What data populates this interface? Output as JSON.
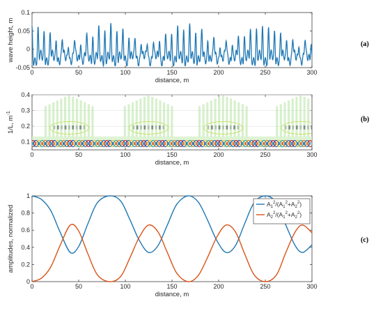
{
  "panels": {
    "a": {
      "label": "(a)"
    },
    "b": {
      "label": "(b)"
    },
    "c": {
      "label": "(c)"
    }
  },
  "colors": {
    "blue": "#1f77b4",
    "orange": "#d95319",
    "axis": "#262626",
    "grid": "#d9d9d9"
  },
  "chart_data": [
    {
      "type": "line",
      "title": "",
      "xlabel": "distance, m",
      "ylabel": "wave height, m",
      "xlim": [
        0,
        300
      ],
      "ylim": [
        -0.05,
        0.1
      ],
      "xticks": [
        "0",
        "50",
        "100",
        "150",
        "200",
        "250",
        "300"
      ],
      "yticks": [
        "-0.05",
        "0",
        "0.05",
        "0.1"
      ],
      "grid": false,
      "series": [
        {
          "color": "#1f77b4",
          "description_values": {
            "peak_spacing_m": 6.5,
            "max": 0.068,
            "min": -0.04
          }
        }
      ]
    },
    {
      "type": "heatmap",
      "title": "",
      "xlabel": "distance, m",
      "ylabel": "1/L, m",
      "ylabel_exponent": "-1",
      "xlim": [
        0,
        300
      ],
      "ylim": [
        0.05,
        0.4
      ],
      "xticks": [
        "0",
        "50",
        "100",
        "150",
        "200",
        "250",
        "300"
      ],
      "yticks": [
        "0.1",
        "0.2",
        "0.3",
        "0.4"
      ],
      "grid": true,
      "dominant_band": {
        "y_center": 0.09,
        "y_half_width": 0.012
      },
      "secondary_band": {
        "y_center": 0.19
      },
      "high_energy_centers_m": [
        40,
        125,
        205,
        288
      ]
    },
    {
      "type": "line",
      "title": "",
      "xlabel": "distance, m",
      "ylabel": "amplitudes, normalized",
      "xlim": [
        0,
        300
      ],
      "ylim": [
        0,
        1
      ],
      "xticks": [
        "0",
        "50",
        "100",
        "150",
        "200",
        "250",
        "300"
      ],
      "yticks": [
        "0",
        "0.2",
        "0.4",
        "0.6",
        "0.8",
        "1"
      ],
      "grid": false,
      "legend_position": "top-right",
      "x": [
        0,
        10,
        20,
        30,
        41,
        50,
        60,
        70,
        83,
        95,
        105,
        115,
        125,
        135,
        145,
        155,
        167,
        178,
        188,
        198,
        208,
        218,
        228,
        238,
        250,
        262,
        272,
        282,
        290,
        300
      ],
      "series": [
        {
          "name_base": "A",
          "name_sub": "1",
          "name_rest": "2/(A",
          "name_sub2": "1",
          "name_rest2": "2+A",
          "name_sub3": "2",
          "name_rest3": "2)",
          "color": "#1f77b4",
          "values": [
            1.0,
            0.96,
            0.83,
            0.58,
            0.34,
            0.41,
            0.68,
            0.92,
            1.0,
            0.94,
            0.72,
            0.48,
            0.34,
            0.42,
            0.66,
            0.9,
            1.0,
            0.93,
            0.72,
            0.48,
            0.34,
            0.42,
            0.68,
            0.92,
            1.0,
            0.92,
            0.66,
            0.42,
            0.34,
            0.43
          ]
        },
        {
          "name_base": "A",
          "name_sub": "2",
          "name_rest": "2/(A",
          "name_sub2": "1",
          "name_rest2": "2+A",
          "name_sub3": "2",
          "name_rest3": "2)",
          "color": "#d95319",
          "values": [
            0.0,
            0.04,
            0.17,
            0.42,
            0.66,
            0.59,
            0.32,
            0.08,
            0.0,
            0.06,
            0.28,
            0.52,
            0.66,
            0.58,
            0.34,
            0.1,
            0.0,
            0.07,
            0.28,
            0.52,
            0.66,
            0.58,
            0.32,
            0.08,
            0.0,
            0.08,
            0.34,
            0.58,
            0.66,
            0.57
          ]
        }
      ],
      "legend": [
        {
          "base": "A",
          "sub": "1",
          "sup": "2",
          "mid": "/(A",
          "sub2": "1",
          "sup2": "2",
          "plus": "+A",
          "sub3": "2",
          "sup3": "2",
          "end": ")"
        },
        {
          "base": "A",
          "sub": "2",
          "sup": "2",
          "mid": "/(A",
          "sub2": "1",
          "sup2": "2",
          "plus": "+A",
          "sub3": "2",
          "sup3": "2",
          "end": ")"
        }
      ]
    }
  ]
}
